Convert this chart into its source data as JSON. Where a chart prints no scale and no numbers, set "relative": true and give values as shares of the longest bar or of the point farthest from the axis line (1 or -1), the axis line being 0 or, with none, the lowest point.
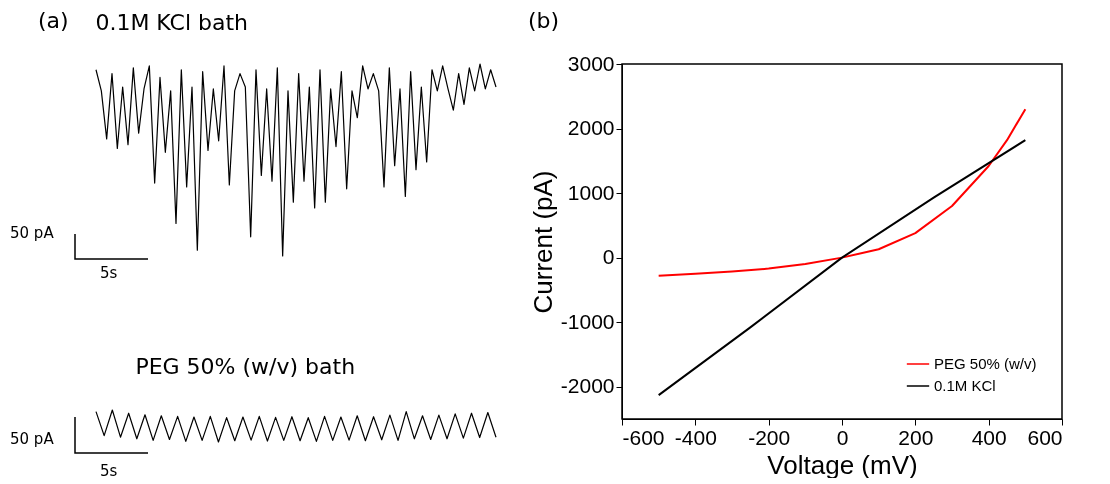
{
  "chart_data": [
    {
      "type": "line",
      "title": "0.1M KCl bath",
      "relative": true,
      "annotations": [
        "(a)",
        "50 pA",
        "5s"
      ],
      "categories": [
        null,
        null,
        null,
        null,
        null,
        null,
        null,
        null,
        null,
        null,
        null,
        null,
        null,
        null,
        null,
        null,
        null,
        null,
        null,
        null,
        null,
        null,
        null,
        null,
        null,
        null,
        null,
        null,
        null,
        null,
        null,
        null,
        null,
        null,
        null,
        null,
        null,
        null,
        null,
        null,
        null,
        null,
        null,
        null,
        null,
        null,
        null,
        null,
        null,
        null,
        null,
        null,
        null,
        null,
        null,
        null,
        null,
        null,
        null,
        null,
        null,
        null,
        null,
        null,
        null,
        null,
        null,
        null,
        null,
        null,
        null,
        null,
        null,
        null,
        null,
        null
      ],
      "series": [
        {
          "color": "#000000",
          "values": [
            0.97,
            0.86,
            0.61,
            0.95,
            0.56,
            0.88,
            0.58,
            0.98,
            0.64,
            0.87,
            0.99,
            0.38,
            0.93,
            0.54,
            0.86,
            0.17,
            0.97,
            0.36,
            0.88,
            0.03,
            0.96,
            0.55,
            0.87,
            0.6,
            0.99,
            0.37,
            0.86,
            0.95,
            0.88,
            0.1,
            0.97,
            0.42,
            0.87,
            0.39,
            0.98,
            0,
            0.86,
            0.28,
            0.95,
            0.39,
            0.88,
            0.25,
            0.97,
            0.28,
            0.87,
            0.57,
            0.96,
            0.35,
            0.86,
            0.72,
            0.99,
            0.87,
            0.95,
            0.86,
            0.36,
            0.98,
            0.47,
            0.87,
            0.31,
            0.96,
            0.45,
            0.88,
            0.49,
            0.97,
            0.86,
            0.99,
            0.87,
            0.76,
            0.95,
            0.79,
            0.98,
            0.86,
            1,
            0.87,
            0.97,
            0.88
          ]
        }
      ]
    },
    {
      "type": "line",
      "title": "PEG 50% (w/v) bath",
      "relative": true,
      "annotations": [
        "50 pA",
        "5s"
      ],
      "categories": [
        null,
        null,
        null,
        null,
        null,
        null,
        null,
        null,
        null,
        null,
        null,
        null,
        null,
        null,
        null,
        null,
        null,
        null,
        null,
        null,
        null,
        null,
        null,
        null,
        null,
        null,
        null,
        null,
        null,
        null,
        null,
        null,
        null,
        null,
        null,
        null,
        null,
        null,
        null,
        null,
        null,
        null,
        null,
        null,
        null,
        null,
        null,
        null,
        null,
        null
      ],
      "series": [
        {
          "color": "#000000",
          "values": [
            0.95,
            0.2,
            1,
            0.15,
            0.9,
            0.1,
            0.85,
            0.05,
            0.82,
            0.08,
            0.8,
            0.02,
            0.78,
            0.05,
            0.8,
            0.0,
            0.76,
            0.04,
            0.78,
            0.06,
            0.8,
            0.03,
            0.77,
            0.05,
            0.79,
            0.04,
            0.76,
            0.02,
            0.8,
            0.05,
            0.78,
            0.06,
            0.82,
            0.04,
            0.79,
            0.07,
            0.84,
            0.05,
            0.95,
            0.1,
            0.82,
            0.08,
            0.84,
            0.1,
            0.88,
            0.12,
            0.9,
            0.14,
            0.92,
            0.15
          ]
        }
      ]
    },
    {
      "type": "line",
      "title": "(b)",
      "xlabel": "Voltage (mV)",
      "ylabel": "Current (pA)",
      "xlim": [
        -600,
        600
      ],
      "xticks": [
        -600,
        -400,
        -200,
        0,
        200,
        400,
        600
      ],
      "ylim": [
        -2500,
        3000
      ],
      "yticks": [
        -2000,
        -1000,
        0,
        1000,
        2000,
        3000
      ],
      "legend": "bottom right",
      "series": [
        {
          "name": "PEG 50% (w/v)",
          "color": "#ff0000",
          "x": [
            -500,
            -400,
            -300,
            -200,
            -100,
            0,
            100,
            200,
            300,
            400,
            450,
            500
          ],
          "values": [
            -280,
            -250,
            -215,
            -170,
            -100,
            0,
            130,
            380,
            800,
            1420,
            1820,
            2300
          ]
        },
        {
          "name": "0.1M KCl",
          "color": "#000000",
          "x": [
            -500,
            -250,
            0,
            250,
            500
          ],
          "values": [
            -2130,
            -1080,
            0,
            930,
            1820
          ]
        }
      ]
    }
  ]
}
